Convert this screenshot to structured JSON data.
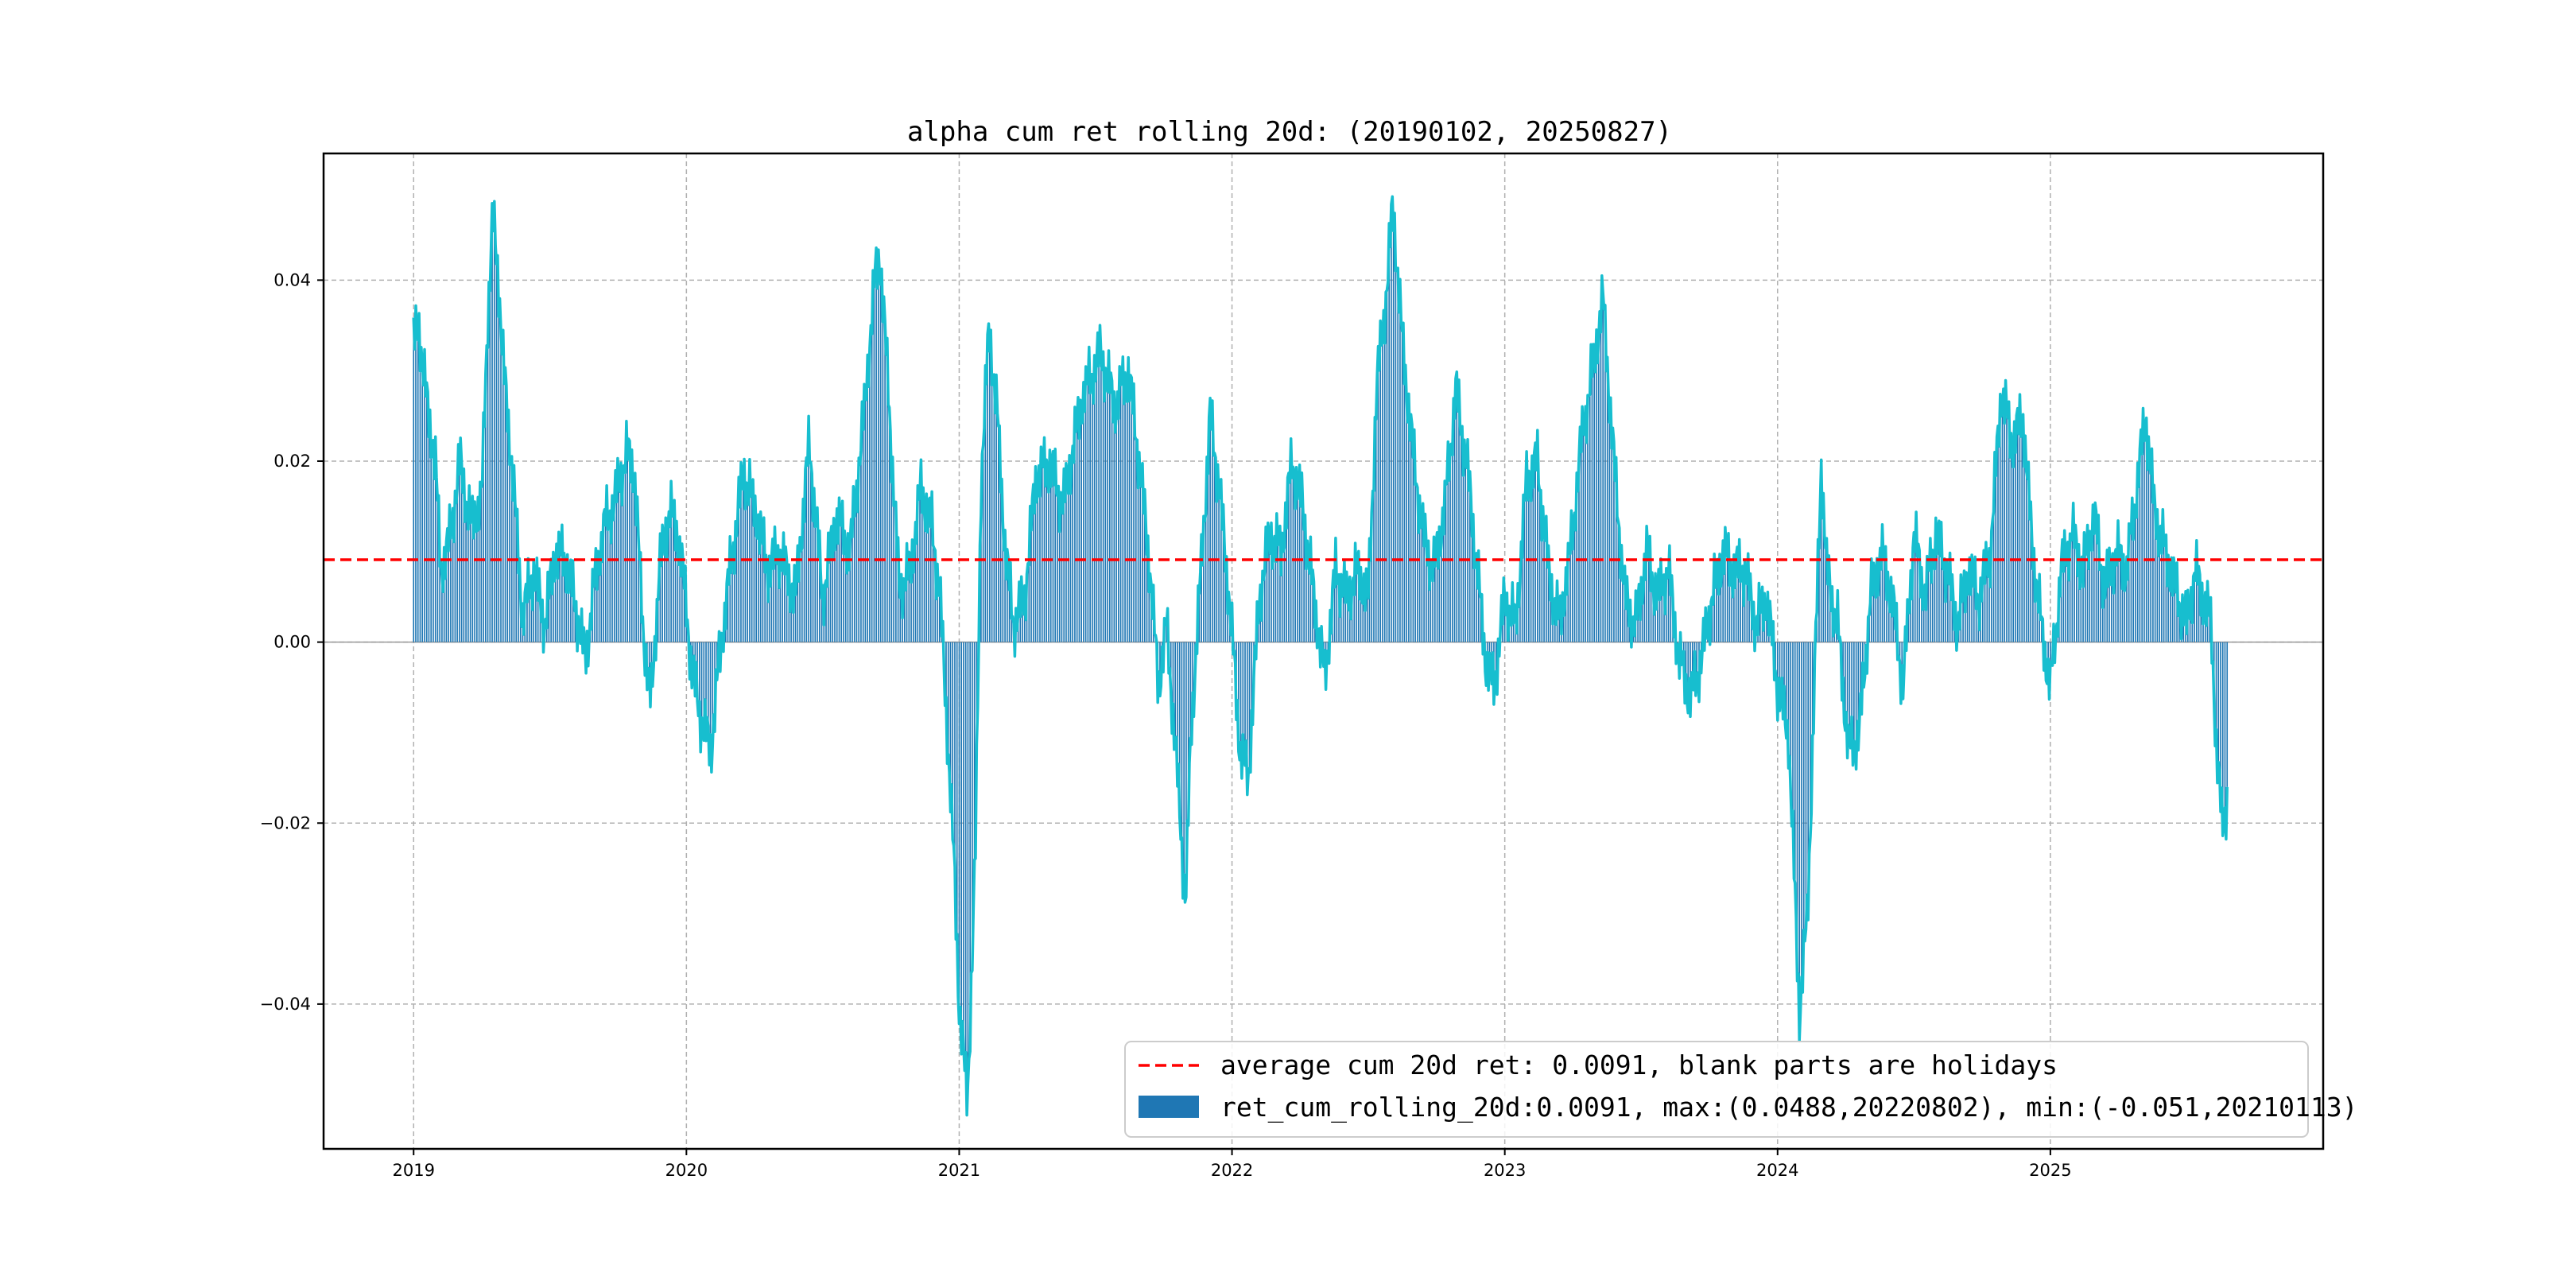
{
  "chart_data": {
    "type": "bar",
    "title": "alpha cum ret rolling 20d: (20190102, 20250827)",
    "xlabel": "",
    "ylabel": "",
    "x_range": [
      2018.67,
      2026.0
    ],
    "ylim": [
      -0.056,
      0.054
    ],
    "grid": true,
    "y_ticks": [
      -0.04,
      -0.02,
      0.0,
      0.02,
      0.04
    ],
    "y_tick_labels": [
      "−0.04",
      "−0.02",
      "0.00",
      "0.02",
      "0.04"
    ],
    "x_ticks": [
      2019,
      2020,
      2021,
      2022,
      2023,
      2024,
      2025
    ],
    "x_tick_labels": [
      "2019",
      "2020",
      "2021",
      "2022",
      "2023",
      "2024",
      "2025"
    ],
    "legend_position": "bottom-right",
    "average": {
      "value": 0.0091,
      "label": "average cum 20d ret: 0.0091, blank parts are holidays",
      "color": "#ff0000"
    },
    "bars": {
      "label": "ret_cum_rolling_20d:0.0091, max:(0.0488,20220802), min:(-0.051,20210113)",
      "color": "#1f77b4",
      "line_color": "#17becf"
    },
    "series_keypoints": [
      [
        2019.0,
        0.033
      ],
      [
        2019.02,
        0.035
      ],
      [
        2019.05,
        0.026
      ],
      [
        2019.08,
        0.02
      ],
      [
        2019.1,
        0.008
      ],
      [
        2019.13,
        0.011
      ],
      [
        2019.17,
        0.02
      ],
      [
        2019.21,
        0.013
      ],
      [
        2019.25,
        0.016
      ],
      [
        2019.27,
        0.035
      ],
      [
        2019.29,
        0.047
      ],
      [
        2019.31,
        0.041
      ],
      [
        2019.33,
        0.03
      ],
      [
        2019.36,
        0.02
      ],
      [
        2019.4,
        0.003
      ],
      [
        2019.44,
        0.008
      ],
      [
        2019.48,
        0.002
      ],
      [
        2019.52,
        0.01
      ],
      [
        2019.56,
        0.009
      ],
      [
        2019.6,
        0.003
      ],
      [
        2019.63,
        -0.002
      ],
      [
        2019.66,
        0.006
      ],
      [
        2019.7,
        0.013
      ],
      [
        2019.74,
        0.016
      ],
      [
        2019.78,
        0.021
      ],
      [
        2019.81,
        0.019
      ],
      [
        2019.84,
        0.002
      ],
      [
        2019.87,
        -0.007
      ],
      [
        2019.9,
        0.008
      ],
      [
        2019.94,
        0.015
      ],
      [
        2019.98,
        0.01
      ],
      [
        2020.02,
        -0.003
      ],
      [
        2020.05,
        -0.008
      ],
      [
        2020.09,
        -0.012
      ],
      [
        2020.12,
        -0.002
      ],
      [
        2020.16,
        0.008
      ],
      [
        2020.21,
        0.019
      ],
      [
        2020.25,
        0.015
      ],
      [
        2020.3,
        0.008
      ],
      [
        2020.34,
        0.01
      ],
      [
        2020.4,
        0.005
      ],
      [
        2020.45,
        0.022
      ],
      [
        2020.5,
        0.005
      ],
      [
        2020.55,
        0.014
      ],
      [
        2020.6,
        0.01
      ],
      [
        2020.65,
        0.025
      ],
      [
        2020.69,
        0.04
      ],
      [
        2020.71,
        0.043
      ],
      [
        2020.74,
        0.028
      ],
      [
        2020.78,
        0.006
      ],
      [
        2020.82,
        0.008
      ],
      [
        2020.86,
        0.017
      ],
      [
        2020.9,
        0.013
      ],
      [
        2020.93,
        0.005
      ],
      [
        2020.96,
        -0.012
      ],
      [
        2020.98,
        -0.024
      ],
      [
        2021.0,
        -0.04
      ],
      [
        2021.03,
        -0.051
      ],
      [
        2021.06,
        -0.023
      ],
      [
        2021.08,
        0.018
      ],
      [
        2021.11,
        0.035
      ],
      [
        2021.14,
        0.025
      ],
      [
        2021.17,
        0.01
      ],
      [
        2021.2,
        0.002
      ],
      [
        2021.24,
        0.005
      ],
      [
        2021.28,
        0.018
      ],
      [
        2021.33,
        0.02
      ],
      [
        2021.38,
        0.015
      ],
      [
        2021.42,
        0.022
      ],
      [
        2021.46,
        0.028
      ],
      [
        2021.52,
        0.032
      ],
      [
        2021.57,
        0.026
      ],
      [
        2021.62,
        0.03
      ],
      [
        2021.66,
        0.02
      ],
      [
        2021.7,
        0.008
      ],
      [
        2021.73,
        -0.005
      ],
      [
        2021.76,
        0.002
      ],
      [
        2021.8,
        -0.015
      ],
      [
        2021.83,
        -0.029
      ],
      [
        2021.85,
        -0.01
      ],
      [
        2021.88,
        0.005
      ],
      [
        2021.92,
        0.025
      ],
      [
        2021.95,
        0.018
      ],
      [
        2021.99,
        0.005
      ],
      [
        2022.03,
        -0.012
      ],
      [
        2022.06,
        -0.015
      ],
      [
        2022.1,
        0.005
      ],
      [
        2022.14,
        0.012
      ],
      [
        2022.18,
        0.01
      ],
      [
        2022.22,
        0.02
      ],
      [
        2022.26,
        0.015
      ],
      [
        2022.3,
        0.005
      ],
      [
        2022.34,
        -0.004
      ],
      [
        2022.38,
        0.008
      ],
      [
        2022.42,
        0.005
      ],
      [
        2022.46,
        0.008
      ],
      [
        2022.5,
        0.005
      ],
      [
        2022.53,
        0.028
      ],
      [
        2022.57,
        0.04
      ],
      [
        2022.59,
        0.0488
      ],
      [
        2022.62,
        0.035
      ],
      [
        2022.66,
        0.022
      ],
      [
        2022.7,
        0.012
      ],
      [
        2022.74,
        0.008
      ],
      [
        2022.78,
        0.015
      ],
      [
        2022.82,
        0.028
      ],
      [
        2022.86,
        0.02
      ],
      [
        2022.9,
        0.008
      ],
      [
        2022.93,
        -0.002
      ],
      [
        2022.96,
        -0.005
      ],
      [
        2023.0,
        0.005
      ],
      [
        2023.04,
        0.002
      ],
      [
        2023.08,
        0.018
      ],
      [
        2023.12,
        0.02
      ],
      [
        2023.16,
        0.008
      ],
      [
        2023.2,
        0.002
      ],
      [
        2023.24,
        0.01
      ],
      [
        2023.28,
        0.022
      ],
      [
        2023.32,
        0.03
      ],
      [
        2023.36,
        0.038
      ],
      [
        2023.4,
        0.02
      ],
      [
        2023.44,
        0.005
      ],
      [
        2023.48,
        0.002
      ],
      [
        2023.52,
        0.01
      ],
      [
        2023.56,
        0.005
      ],
      [
        2023.6,
        0.008
      ],
      [
        2023.64,
        -0.002
      ],
      [
        2023.68,
        -0.006
      ],
      [
        2023.72,
        -0.002
      ],
      [
        2023.76,
        0.005
      ],
      [
        2023.8,
        0.01
      ],
      [
        2023.84,
        0.008
      ],
      [
        2023.88,
        0.008
      ],
      [
        2023.92,
        0.002
      ],
      [
        2023.96,
        0.005
      ],
      [
        2024.0,
        -0.005
      ],
      [
        2024.04,
        -0.01
      ],
      [
        2024.08,
        -0.041
      ],
      [
        2024.11,
        -0.03
      ],
      [
        2024.13,
        -0.01
      ],
      [
        2024.16,
        0.02
      ],
      [
        2024.18,
        0.008
      ],
      [
        2024.22,
        0.002
      ],
      [
        2024.26,
        -0.012
      ],
      [
        2024.3,
        -0.01
      ],
      [
        2024.34,
        0.005
      ],
      [
        2024.38,
        0.01
      ],
      [
        2024.42,
        0.005
      ],
      [
        2024.46,
        -0.005
      ],
      [
        2024.5,
        0.012
      ],
      [
        2024.54,
        0.005
      ],
      [
        2024.58,
        0.012
      ],
      [
        2024.62,
        0.008
      ],
      [
        2024.66,
        0.002
      ],
      [
        2024.7,
        0.008
      ],
      [
        2024.74,
        0.005
      ],
      [
        2024.78,
        0.01
      ],
      [
        2024.82,
        0.028
      ],
      [
        2024.86,
        0.022
      ],
      [
        2024.9,
        0.025
      ],
      [
        2024.93,
        0.012
      ],
      [
        2024.97,
        0.001
      ],
      [
        2025.0,
        -0.005
      ],
      [
        2025.04,
        0.008
      ],
      [
        2025.08,
        0.012
      ],
      [
        2025.12,
        0.008
      ],
      [
        2025.16,
        0.014
      ],
      [
        2025.2,
        0.006
      ],
      [
        2025.24,
        0.01
      ],
      [
        2025.28,
        0.008
      ],
      [
        2025.32,
        0.018
      ],
      [
        2025.35,
        0.025
      ],
      [
        2025.38,
        0.015
      ],
      [
        2025.42,
        0.01
      ],
      [
        2025.46,
        0.006
      ],
      [
        2025.5,
        0.002
      ],
      [
        2025.53,
        0.008
      ],
      [
        2025.57,
        0.004
      ],
      [
        2025.59,
        0.002
      ],
      [
        2025.61,
        -0.013
      ],
      [
        2025.63,
        -0.02
      ],
      [
        2025.65,
        -0.017
      ]
    ]
  }
}
